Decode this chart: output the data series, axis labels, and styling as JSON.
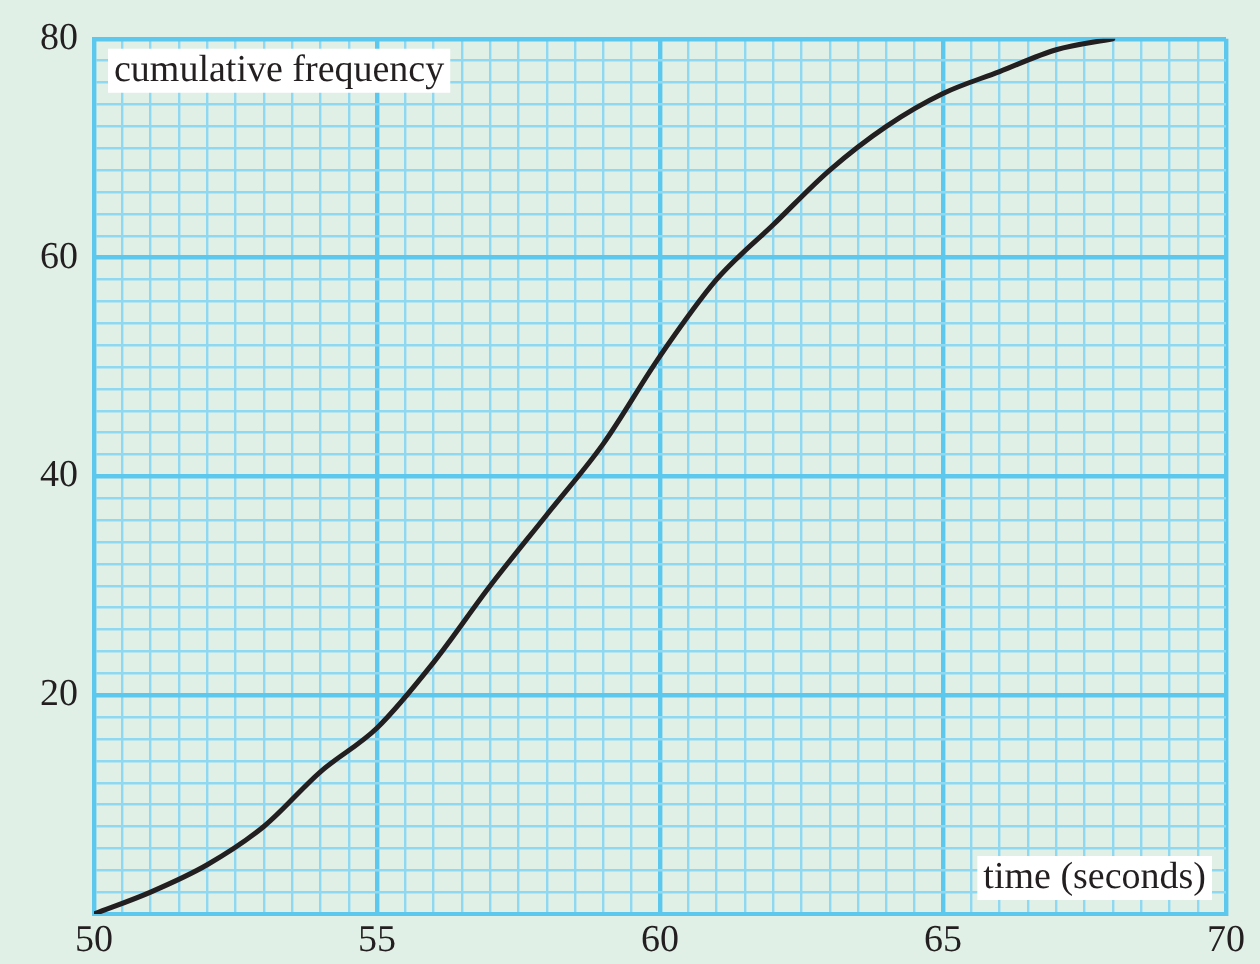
{
  "chart_data": {
    "type": "line",
    "xlabel": "time (seconds)",
    "ylabel": "cumulative frequency",
    "x": [
      50,
      51,
      52,
      53,
      54,
      55,
      56,
      57,
      58,
      59,
      60,
      61,
      62,
      63,
      64,
      65,
      66,
      67,
      68
    ],
    "values": [
      0,
      2,
      4.5,
      8,
      13,
      17,
      23,
      30,
      36.5,
      43,
      51,
      58,
      63,
      68,
      72,
      75,
      77,
      79,
      80
    ],
    "color": "#231f20",
    "marker": "none",
    "line_style": "solid",
    "grid": true,
    "xlim": [
      50,
      70
    ],
    "ylim": [
      0,
      80
    ],
    "xticks": [
      50,
      {
        "value": 50.5,
        "label": null
      },
      {
        "value": 51,
        "label": null
      },
      {
        "value": 51.5,
        "label": null
      },
      {
        "value": 52,
        "label": null
      },
      {
        "value": 52.5,
        "label": null
      },
      {
        "value": 53,
        "label": null
      },
      {
        "value": 53.5,
        "label": null
      },
      {
        "value": 54,
        "label": null
      },
      {
        "value": 54.5,
        "label": null
      },
      55,
      {
        "value": 55.5,
        "label": null
      },
      {
        "value": 56,
        "label": null
      },
      {
        "value": 56.5,
        "label": null
      },
      {
        "value": 57,
        "label": null
      },
      {
        "value": 57.5,
        "label": null
      },
      {
        "value": 58,
        "label": null
      },
      {
        "value": 58.5,
        "label": null
      },
      {
        "value": 59,
        "label": null
      },
      {
        "value": 59.5,
        "label": null
      },
      60,
      {
        "value": 60.5,
        "label": null
      },
      {
        "value": 61,
        "label": null
      },
      {
        "value": 61.5,
        "label": null
      },
      {
        "value": 62,
        "label": null
      },
      {
        "value": 62.5,
        "label": null
      },
      {
        "value": 63,
        "label": null
      },
      {
        "value": 63.5,
        "label": null
      },
      {
        "value": 64,
        "label": null
      },
      {
        "value": 64.5,
        "label": null
      },
      65,
      {
        "value": 65.5,
        "label": null
      },
      {
        "value": 66,
        "label": null
      },
      {
        "value": 66.5,
        "label": null
      },
      {
        "value": 67,
        "label": null
      },
      {
        "value": 67.5,
        "label": null
      },
      {
        "value": 68,
        "label": null
      },
      {
        "value": 68.5,
        "label": null
      },
      {
        "value": 69,
        "label": null
      },
      {
        "value": 69.5,
        "label": null
      },
      70
    ],
    "yticks": [
      {
        "value": 0,
        "label": null
      },
      {
        "value": 2,
        "label": null
      },
      {
        "value": 4,
        "label": null
      },
      {
        "value": 6,
        "label": null
      },
      {
        "value": 8,
        "label": null
      },
      {
        "value": 10,
        "label": null
      },
      {
        "value": 12,
        "label": null
      },
      {
        "value": 14,
        "label": null
      },
      {
        "value": 16,
        "label": null
      },
      {
        "value": 18,
        "label": null
      },
      20,
      {
        "value": 22,
        "label": null
      },
      {
        "value": 24,
        "label": null
      },
      {
        "value": 26,
        "label": null
      },
      {
        "value": 28,
        "label": null
      },
      {
        "value": 30,
        "label": null
      },
      {
        "value": 32,
        "label": null
      },
      {
        "value": 34,
        "label": null
      },
      {
        "value": 36,
        "label": null
      },
      {
        "value": 38,
        "label": null
      },
      40,
      {
        "value": 42,
        "label": null
      },
      {
        "value": 44,
        "label": null
      },
      {
        "value": 46,
        "label": null
      },
      {
        "value": 48,
        "label": null
      },
      {
        "value": 50,
        "label": null
      },
      {
        "value": 52,
        "label": null
      },
      {
        "value": 54,
        "label": null
      },
      {
        "value": 56,
        "label": null
      },
      {
        "value": 58,
        "label": null
      },
      60,
      {
        "value": 62,
        "label": null
      },
      {
        "value": 64,
        "label": null
      },
      {
        "value": 66,
        "label": null
      },
      {
        "value": 68,
        "label": null
      },
      {
        "value": 70,
        "label": null
      },
      {
        "value": 72,
        "label": null
      },
      {
        "value": 74,
        "label": null
      },
      {
        "value": 76,
        "label": null
      },
      {
        "value": 78,
        "label": null
      },
      80
    ]
  }
}
